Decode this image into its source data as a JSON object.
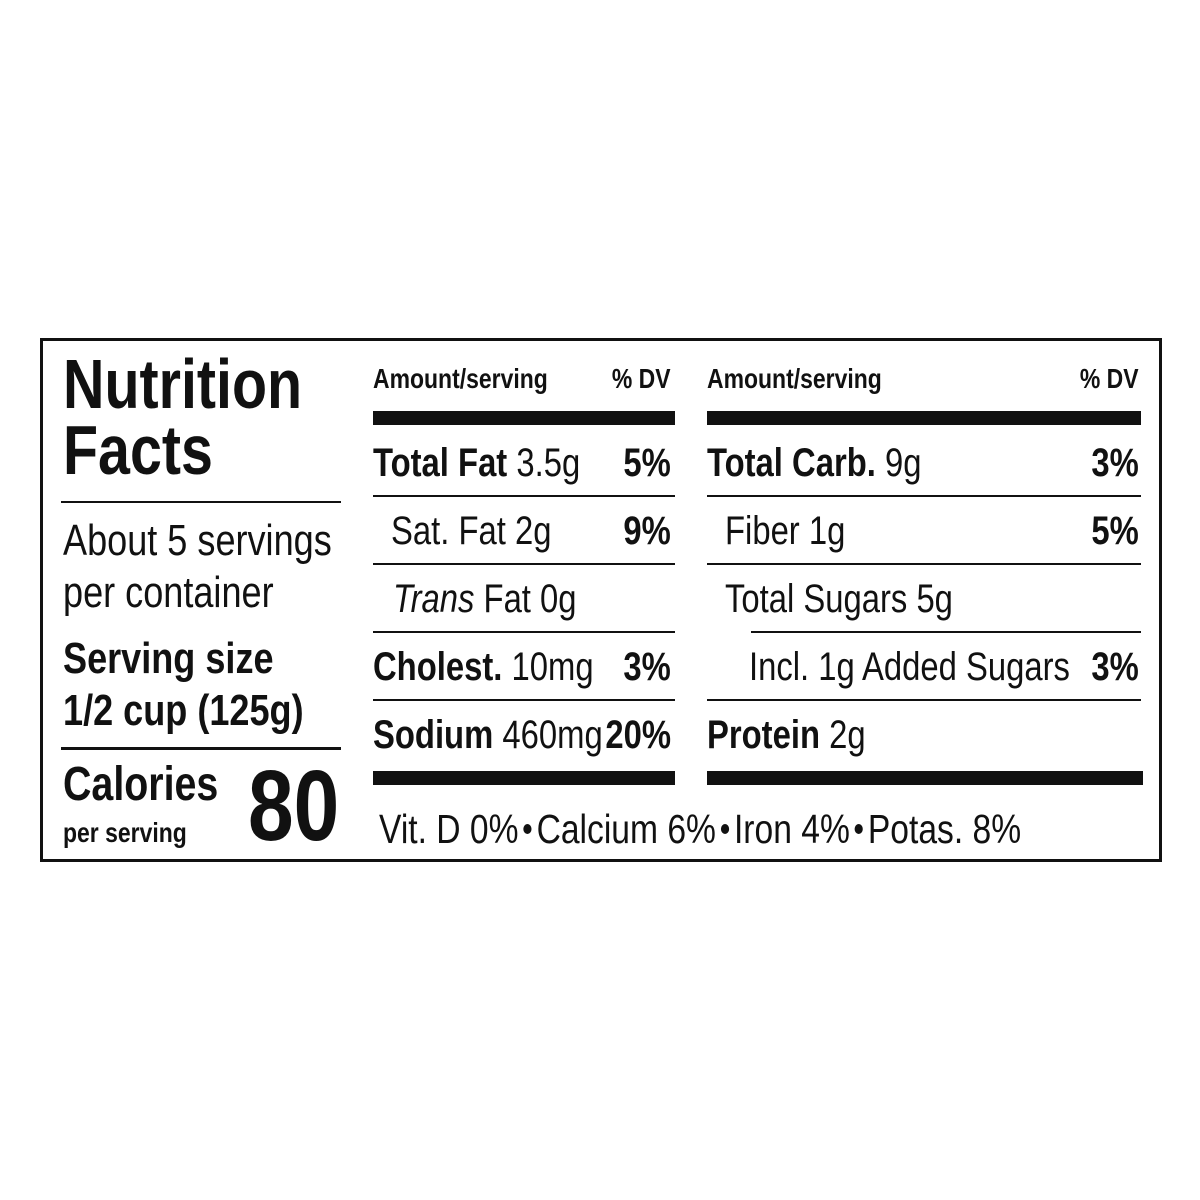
{
  "title": {
    "line1": "Nutrition",
    "line2": "Facts"
  },
  "servings": {
    "line1": "About 5 servings",
    "line2": "per container"
  },
  "serving_size": {
    "label": "Serving size",
    "value": "1/2 cup (125g)"
  },
  "calories": {
    "label": "Calories",
    "sublabel": "per serving",
    "value": "80"
  },
  "left_column": {
    "header_amount": "Amount/serving",
    "header_dv": "% DV",
    "rows": [
      {
        "name": "Total Fat",
        "amount": "3.5g",
        "dv": "5%"
      },
      {
        "name": "Sat. Fat",
        "amount": "2g",
        "dv": "9%"
      },
      {
        "name": "Trans",
        "suffix": "Fat",
        "amount": "0g",
        "dv": ""
      },
      {
        "name": "Cholest.",
        "amount": "10mg",
        "dv": "3%"
      },
      {
        "name": "Sodium",
        "amount": "460mg",
        "dv": "20%"
      }
    ]
  },
  "right_column": {
    "header_amount": "Amount/serving",
    "header_dv": "% DV",
    "rows": [
      {
        "name": "Total Carb.",
        "amount": "9g",
        "dv": "3%"
      },
      {
        "name": "Fiber",
        "amount": "1g",
        "dv": "5%"
      },
      {
        "name": "Total Sugars",
        "amount": "5g",
        "dv": ""
      },
      {
        "name": "Incl. 1g Added Sugars",
        "amount": "",
        "dv": "3%"
      },
      {
        "name": "Protein",
        "amount": "2g",
        "dv": ""
      }
    ]
  },
  "footer": {
    "items": [
      "Vit. D 0%",
      "Calcium 6%",
      "Iron 4%",
      "Potas. 8%"
    ]
  }
}
